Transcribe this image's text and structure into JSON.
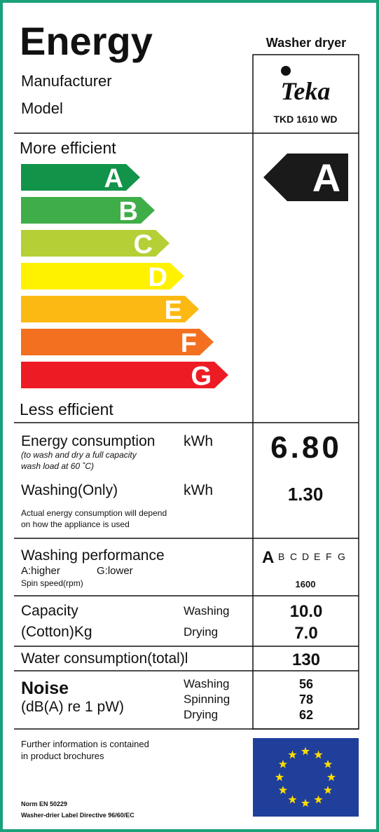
{
  "header": {
    "title": "Energy",
    "product_type": "Washer dryer",
    "manufacturer_label": "Manufacturer",
    "model_label": "Model",
    "brand": "Teka",
    "model": "TKD 1610 WD"
  },
  "efficiency": {
    "more": "More efficient",
    "less": "Less efficient",
    "classes": [
      "A",
      "B",
      "C",
      "D",
      "E",
      "F",
      "G"
    ],
    "rating": "A"
  },
  "energy": {
    "label": "Energy consumption",
    "unit": "kWh",
    "note": [
      "(to wash and dry a full capacity",
      "wash load at 60 ˚C)"
    ],
    "value": "6.80"
  },
  "washing": {
    "label": "Washing(Only)",
    "unit": "kWh",
    "value": "1.30",
    "note": [
      "Actual energy consumption will depend",
      "on how the appliance is used"
    ]
  },
  "performance": {
    "label": "Washing performance",
    "higher": "A:higher",
    "lower": "G:lower",
    "spin_label": "Spin speed(rpm)",
    "spin_value": "1600",
    "rating": "A",
    "scale": [
      "B",
      "C",
      "D",
      "E",
      "F",
      "G"
    ]
  },
  "capacity": {
    "label": [
      "Capacity",
      "(Cotton)Kg"
    ],
    "washing_label": "Washing",
    "drying_label": "Drying",
    "washing_value": "10.0",
    "drying_value": "7.0"
  },
  "water": {
    "label": "Water consumption(total)l",
    "value": "130"
  },
  "noise": {
    "label": "Noise",
    "unit": "(dB(A) re 1 pW)",
    "labels": [
      "Washing",
      "Spinning",
      "Drying"
    ],
    "values": [
      "56",
      "78",
      "62"
    ]
  },
  "footer": {
    "info": [
      "Further information is contained",
      "in product brochures"
    ],
    "norm": "Norm EN 50229",
    "directive": "Washer-drier Label Directive 96/60/EC"
  }
}
